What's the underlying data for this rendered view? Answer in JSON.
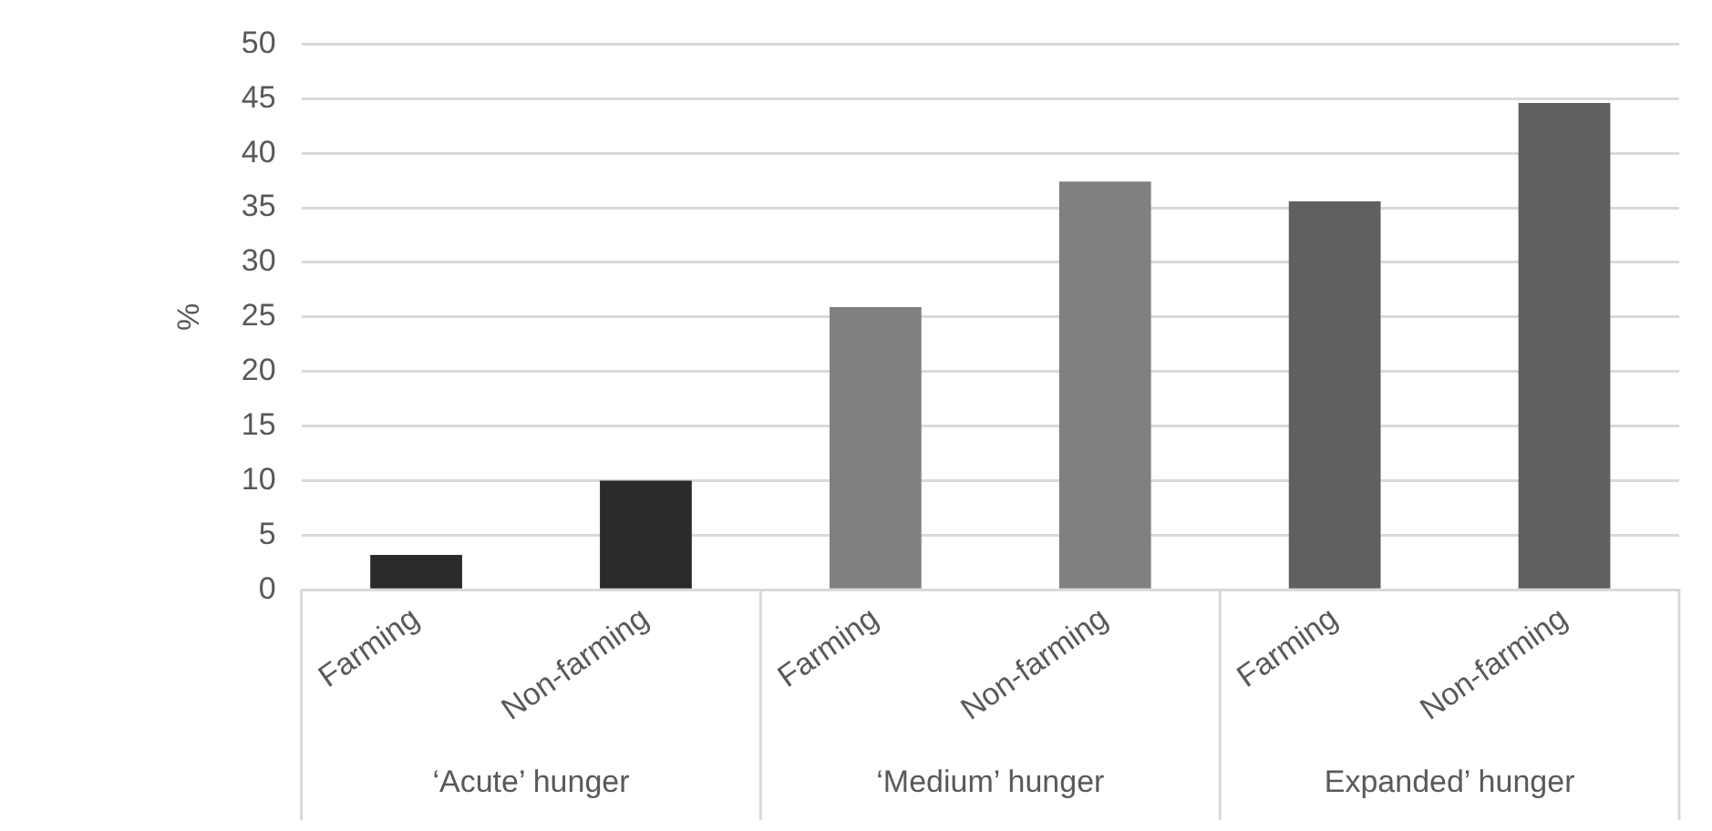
{
  "chart_data": {
    "type": "bar",
    "ylabel": "%",
    "categories": [
      "Farming",
      "Non-farming",
      "Farming",
      "Non-farming",
      "Farming",
      "Non-farming"
    ],
    "values": [
      3.2,
      10.0,
      25.9,
      37.4,
      35.6,
      44.6
    ],
    "colors": [
      "#2a2a2a",
      "#2a2a2a",
      "#808080",
      "#808080",
      "#606060",
      "#606060"
    ],
    "ylim": [
      0,
      50
    ],
    "yticks": [
      0,
      5,
      10,
      15,
      20,
      25,
      30,
      35,
      40,
      45,
      50
    ],
    "grid": "y",
    "legend": false,
    "annotations": [
      "‘Acute’ hunger",
      "‘Medium’ hunger",
      "Expanded’ hunger"
    ]
  }
}
